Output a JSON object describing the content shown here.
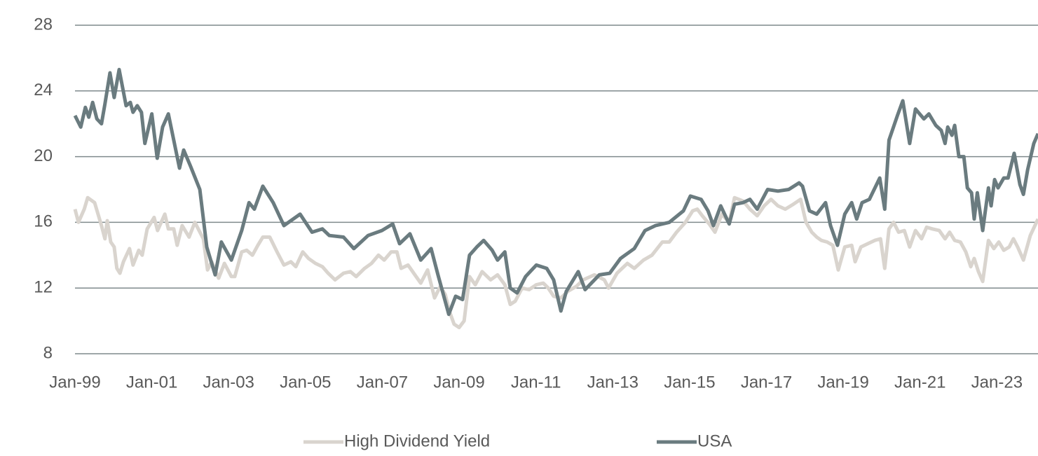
{
  "chart_data": {
    "type": "line",
    "xlim": [
      1999,
      2024.07
    ],
    "xticks": [
      {
        "value": 1999,
        "label": "Jan-99"
      },
      {
        "value": 2001,
        "label": "Jan-01"
      },
      {
        "value": 2003,
        "label": "Jan-03"
      },
      {
        "value": 2005,
        "label": "Jan-05"
      },
      {
        "value": 2007,
        "label": "Jan-07"
      },
      {
        "value": 2009,
        "label": "Jan-09"
      },
      {
        "value": 2011,
        "label": "Jan-11"
      },
      {
        "value": 2013,
        "label": "Jan-13"
      },
      {
        "value": 2015,
        "label": "Jan-15"
      },
      {
        "value": 2017,
        "label": "Jan-17"
      },
      {
        "value": 2019,
        "label": "Jan-19"
      },
      {
        "value": 2021,
        "label": "Jan-21"
      },
      {
        "value": 2023,
        "label": "Jan-23"
      }
    ],
    "ylim": [
      8,
      28
    ],
    "yticks": [
      8,
      12,
      16,
      20,
      24,
      28
    ],
    "grid": true,
    "series": [
      {
        "name": "High Dividend Yield",
        "color": "#d9d4ce",
        "x": [
          1999.0,
          1999.09,
          1999.24,
          1999.33,
          1999.51,
          1999.69,
          1999.78,
          1999.84,
          1999.93,
          2000.02,
          2000.09,
          2000.17,
          2000.26,
          2000.42,
          2000.51,
          2000.66,
          2000.75,
          2000.88,
          2001.06,
          2001.15,
          2001.34,
          2001.43,
          2001.57,
          2001.66,
          2001.79,
          2001.97,
          2002.12,
          2002.34,
          2002.45,
          2002.56,
          2002.74,
          2002.89,
          2003.07,
          2003.16,
          2003.34,
          2003.47,
          2003.62,
          2003.76,
          2003.89,
          2004.07,
          2004.26,
          2004.44,
          2004.62,
          2004.75,
          2004.93,
          2005.08,
          2005.26,
          2005.44,
          2005.59,
          2005.77,
          2005.99,
          2006.17,
          2006.32,
          2006.54,
          2006.72,
          2006.9,
          2007.05,
          2007.23,
          2007.38,
          2007.49,
          2007.67,
          2007.85,
          2008.0,
          2008.18,
          2008.36,
          2008.51,
          2008.64,
          2008.76,
          2008.87,
          2009.0,
          2009.13,
          2009.27,
          2009.42,
          2009.6,
          2009.82,
          2010.0,
          2010.19,
          2010.33,
          2010.46,
          2010.64,
          2010.82,
          2011.01,
          2011.19,
          2011.32,
          2011.46,
          2011.65,
          2011.83,
          2012.05,
          2012.23,
          2012.52,
          2012.78,
          2012.89,
          2013.11,
          2013.38,
          2013.56,
          2013.8,
          2014.02,
          2014.29,
          2014.47,
          2014.66,
          2014.89,
          2015.08,
          2015.2,
          2015.33,
          2015.51,
          2015.66,
          2015.84,
          2016.03,
          2016.17,
          2016.39,
          2016.57,
          2016.76,
          2016.94,
          2017.12,
          2017.3,
          2017.49,
          2017.7,
          2017.89,
          2018.03,
          2018.18,
          2018.31,
          2018.43,
          2018.58,
          2018.73,
          2018.87,
          2019.04,
          2019.22,
          2019.31,
          2019.46,
          2019.64,
          2019.82,
          2019.97,
          2020.08,
          2020.19,
          2020.31,
          2020.44,
          2020.59,
          2020.73,
          2020.88,
          2021.04,
          2021.17,
          2021.32,
          2021.5,
          2021.65,
          2021.77,
          2021.9,
          2022.05,
          2022.19,
          2022.32,
          2022.41,
          2022.52,
          2022.63,
          2022.78,
          2022.92,
          2023.05,
          2023.18,
          2023.32,
          2023.43,
          2023.54,
          2023.69,
          2023.87,
          2024.07
        ],
        "values": [
          16.8,
          16.0,
          16.8,
          17.5,
          17.2,
          15.8,
          15.0,
          16.1,
          14.8,
          14.5,
          13.2,
          12.9,
          13.6,
          14.4,
          13.4,
          14.3,
          14.0,
          15.6,
          16.3,
          15.5,
          16.5,
          15.6,
          15.6,
          14.6,
          15.8,
          15.1,
          16.0,
          15.0,
          13.1,
          13.6,
          12.6,
          13.5,
          12.7,
          12.7,
          14.2,
          14.3,
          14.0,
          14.6,
          15.1,
          15.1,
          14.2,
          13.4,
          13.6,
          13.3,
          14.2,
          13.8,
          13.5,
          13.3,
          12.9,
          12.5,
          12.9,
          13.0,
          12.7,
          13.2,
          13.5,
          14.0,
          13.7,
          14.2,
          14.2,
          13.2,
          13.4,
          12.8,
          12.3,
          13.1,
          11.4,
          12.1,
          11.6,
          10.5,
          9.8,
          9.6,
          10.0,
          12.7,
          12.2,
          13.0,
          12.5,
          12.8,
          12.2,
          11.0,
          11.2,
          12.0,
          11.9,
          12.2,
          12.3,
          12.0,
          11.5,
          11.4,
          11.8,
          12.1,
          12.5,
          12.8,
          12.5,
          12.0,
          12.9,
          13.5,
          13.2,
          13.7,
          14.0,
          14.8,
          14.8,
          15.4,
          16.0,
          16.7,
          16.8,
          16.4,
          15.9,
          15.4,
          16.5,
          16.0,
          17.5,
          17.3,
          16.8,
          16.4,
          17.0,
          17.4,
          17.0,
          16.8,
          17.1,
          17.4,
          16.0,
          15.4,
          15.1,
          14.9,
          14.8,
          14.6,
          13.1,
          14.5,
          14.6,
          13.6,
          14.5,
          14.7,
          14.9,
          15.0,
          13.2,
          15.6,
          16.0,
          15.4,
          15.5,
          14.5,
          15.5,
          15.0,
          15.7,
          15.6,
          15.5,
          15.0,
          15.4,
          14.9,
          14.8,
          14.2,
          13.3,
          13.8,
          13.0,
          12.4,
          14.9,
          14.4,
          14.8,
          14.3,
          14.5,
          15.0,
          14.5,
          13.7,
          15.2,
          16.2
        ]
      },
      {
        "name": "USA",
        "color": "#6a7b7f",
        "x": [
          1999.0,
          1999.15,
          1999.27,
          1999.36,
          1999.46,
          1999.57,
          1999.69,
          1999.78,
          1999.91,
          2000.02,
          2000.15,
          2000.33,
          2000.44,
          2000.51,
          2000.62,
          2000.73,
          2000.82,
          2001.0,
          2001.14,
          2001.28,
          2001.43,
          2001.72,
          2001.83,
          2002.01,
          2002.25,
          2002.43,
          2002.65,
          2002.81,
          2003.07,
          2003.34,
          2003.53,
          2003.67,
          2003.89,
          2004.16,
          2004.44,
          2004.86,
          2005.17,
          2005.44,
          2005.62,
          2005.99,
          2006.26,
          2006.63,
          2006.99,
          2007.27,
          2007.45,
          2007.72,
          2008.0,
          2008.27,
          2008.45,
          2008.73,
          2008.91,
          2009.09,
          2009.27,
          2009.46,
          2009.64,
          2009.86,
          2010.0,
          2010.19,
          2010.33,
          2010.51,
          2010.73,
          2011.01,
          2011.28,
          2011.46,
          2011.65,
          2011.79,
          2012.1,
          2012.28,
          2012.65,
          2012.92,
          2013.2,
          2013.56,
          2013.84,
          2014.11,
          2014.47,
          2014.84,
          2015.02,
          2015.3,
          2015.48,
          2015.62,
          2015.81,
          2016.03,
          2016.17,
          2016.39,
          2016.57,
          2016.76,
          2017.03,
          2017.3,
          2017.58,
          2017.85,
          2017.94,
          2018.12,
          2018.31,
          2018.54,
          2018.67,
          2018.85,
          2019.04,
          2019.22,
          2019.35,
          2019.49,
          2019.68,
          2019.95,
          2020.08,
          2020.19,
          2020.41,
          2020.55,
          2020.73,
          2020.88,
          2021.1,
          2021.23,
          2021.41,
          2021.55,
          2021.65,
          2021.72,
          2021.83,
          2021.9,
          2022.01,
          2022.14,
          2022.23,
          2022.34,
          2022.41,
          2022.49,
          2022.63,
          2022.78,
          2022.85,
          2022.94,
          2023.03,
          2023.18,
          2023.29,
          2023.45,
          2023.6,
          2023.69,
          2023.8,
          2023.96,
          2024.07
        ],
        "values": [
          22.5,
          21.8,
          23.0,
          22.4,
          23.3,
          22.3,
          22.0,
          23.2,
          25.1,
          23.6,
          25.3,
          23.1,
          23.3,
          22.7,
          23.1,
          22.7,
          20.8,
          22.6,
          19.9,
          21.8,
          22.6,
          19.3,
          20.4,
          19.4,
          18.0,
          14.5,
          12.8,
          14.8,
          13.7,
          15.5,
          17.2,
          16.8,
          18.2,
          17.2,
          15.8,
          16.5,
          15.4,
          15.6,
          15.2,
          15.1,
          14.4,
          15.2,
          15.5,
          15.9,
          14.7,
          15.3,
          13.7,
          14.4,
          12.8,
          10.4,
          11.5,
          11.3,
          14.0,
          14.5,
          14.9,
          14.3,
          13.7,
          14.2,
          12.0,
          11.7,
          12.7,
          13.4,
          13.2,
          12.5,
          10.6,
          11.8,
          13.0,
          11.9,
          12.8,
          12.9,
          13.8,
          14.4,
          15.5,
          15.8,
          16.0,
          16.7,
          17.6,
          17.4,
          16.7,
          15.8,
          17.0,
          15.9,
          17.1,
          17.2,
          17.4,
          16.8,
          18.0,
          17.9,
          18.0,
          18.4,
          18.2,
          16.7,
          16.5,
          17.2,
          15.8,
          14.6,
          16.5,
          17.2,
          16.2,
          17.2,
          17.4,
          18.7,
          16.8,
          21.0,
          22.5,
          23.4,
          20.8,
          22.9,
          22.3,
          22.6,
          21.9,
          21.6,
          20.8,
          21.8,
          21.3,
          21.9,
          20.0,
          20.0,
          18.1,
          17.8,
          16.2,
          17.8,
          15.5,
          18.1,
          17.0,
          18.6,
          18.1,
          18.7,
          18.7,
          20.2,
          18.3,
          17.7,
          19.2,
          20.8,
          21.4
        ]
      }
    ]
  }
}
